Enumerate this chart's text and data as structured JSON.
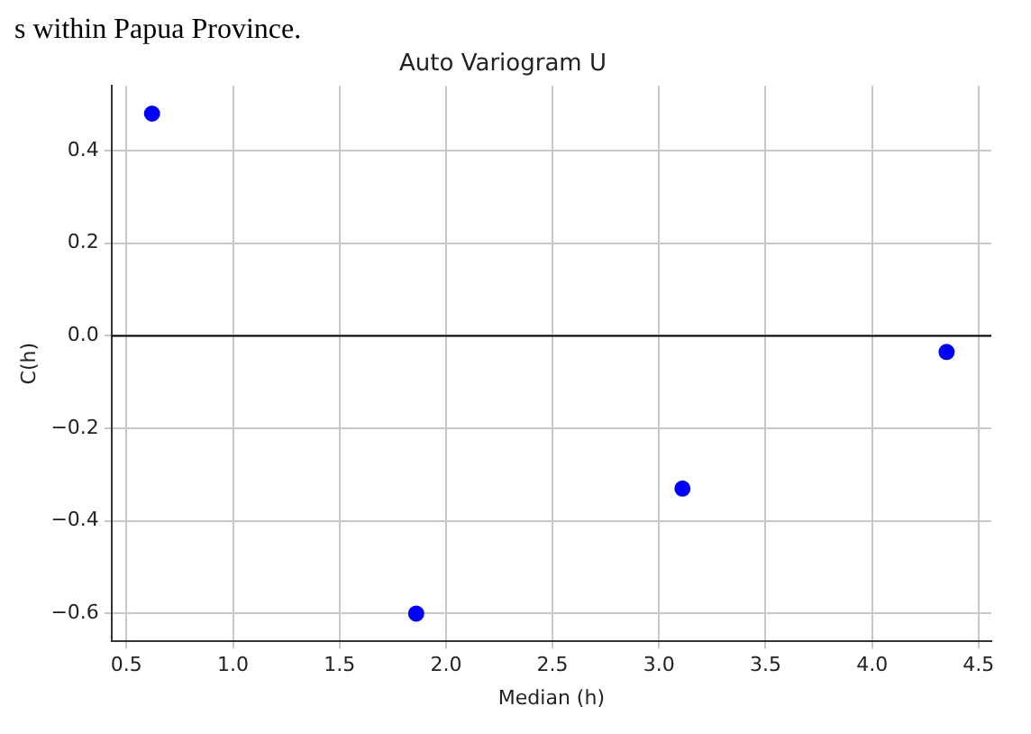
{
  "chart_data": {
    "type": "scatter",
    "title": "Auto Variogram U",
    "xlabel": "Median (h)",
    "ylabel": "C(h)",
    "annotations": [
      "s within Papua Province."
    ],
    "x": [
      0.62,
      1.86,
      3.11,
      4.35
    ],
    "series": [
      {
        "color": "#0000ff",
        "values": [
          0.48,
          -0.6,
          -0.33,
          -0.035
        ]
      }
    ],
    "xlim": [
      0.43,
      4.56
    ],
    "xticks": [
      {
        "value": 0.5,
        "label": "0.5"
      },
      {
        "value": 1,
        "label": "1.0"
      },
      {
        "value": 1.5,
        "label": "1.5"
      },
      {
        "value": 2,
        "label": "2.0"
      },
      {
        "value": 2.5,
        "label": "2.5"
      },
      {
        "value": 3,
        "label": "3.0"
      },
      {
        "value": 3.5,
        "label": "3.5"
      },
      {
        "value": 4,
        "label": "4.0"
      },
      {
        "value": 4.5,
        "label": "4.5"
      }
    ],
    "ylim": [
      -0.66,
      0.54
    ],
    "yticks": [
      {
        "value": -0.6,
        "label": "−0.6"
      },
      {
        "value": -0.4,
        "label": "−0.4"
      },
      {
        "value": -0.2,
        "label": "−0.2"
      },
      {
        "value": 0,
        "label": "0.0"
      },
      {
        "value": 0.2,
        "label": "0.2"
      },
      {
        "value": 0.4,
        "label": "0.4"
      }
    ],
    "ref_lines": [
      {
        "axis": "y",
        "value": 0,
        "color": "#000000"
      }
    ],
    "grid": true,
    "legend": false,
    "marker": "circle"
  }
}
